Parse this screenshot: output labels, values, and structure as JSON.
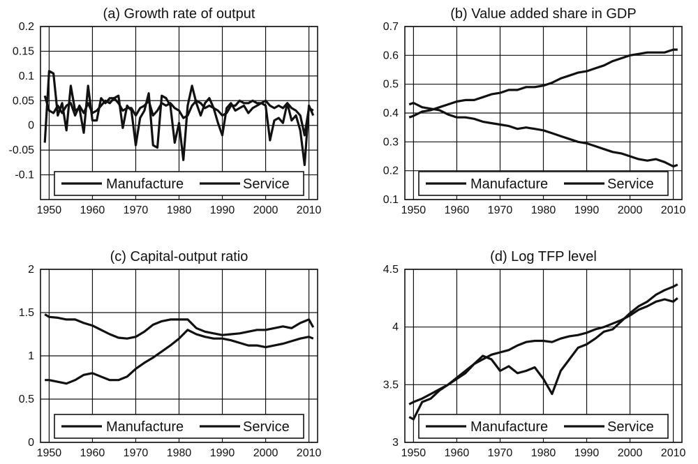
{
  "chart_data": [
    {
      "id": "a",
      "type": "line",
      "title": "(a) Growth rate of output",
      "xlabel": "",
      "ylabel": "",
      "xlim": [
        1948,
        2012
      ],
      "ylim": [
        -0.15,
        0.2
      ],
      "xticks": [
        1950,
        1960,
        1970,
        1980,
        1990,
        2000,
        2010
      ],
      "yticks": [
        -0.1,
        -0.05,
        0,
        0.05,
        0.1,
        0.15,
        0.2
      ],
      "ytick_labels": [
        "-0.1",
        "-0.05",
        "0",
        "0.05",
        "0.1",
        "0.15",
        "0.2"
      ],
      "grid": true,
      "legend_position": "bottom",
      "series": [
        {
          "name": "Manufacture",
          "x": [
            1949,
            1950,
            1951,
            1952,
            1953,
            1954,
            1955,
            1956,
            1957,
            1958,
            1959,
            1960,
            1961,
            1962,
            1963,
            1964,
            1965,
            1966,
            1967,
            1968,
            1969,
            1970,
            1971,
            1972,
            1973,
            1974,
            1975,
            1976,
            1977,
            1978,
            1979,
            1980,
            1981,
            1982,
            1983,
            1984,
            1985,
            1986,
            1987,
            1988,
            1989,
            1990,
            1991,
            1992,
            1993,
            1994,
            1995,
            1996,
            1997,
            1998,
            1999,
            2000,
            2001,
            2002,
            2003,
            2004,
            2005,
            2006,
            2007,
            2008,
            2009,
            2010,
            2011
          ],
          "y": [
            -0.035,
            0.11,
            0.105,
            0.02,
            0.045,
            -0.01,
            0.08,
            0.03,
            0.035,
            -0.015,
            0.08,
            0.01,
            0.01,
            0.055,
            0.045,
            0.055,
            0.055,
            0.06,
            -0.005,
            0.04,
            0.03,
            -0.04,
            0.015,
            0.03,
            0.065,
            -0.04,
            -0.045,
            0.06,
            0.055,
            0.04,
            -0.035,
            0.005,
            -0.07,
            0.04,
            0.08,
            0.045,
            0.02,
            0.045,
            0.055,
            0.035,
            0.005,
            -0.02,
            0.035,
            0.045,
            0.03,
            0.035,
            0.04,
            0.025,
            0.035,
            0.04,
            0.045,
            0.04,
            -0.03,
            0.01,
            0.015,
            0.005,
            0.045,
            0.01,
            0.02,
            -0.01,
            -0.08,
            0.04,
            0.02
          ]
        },
        {
          "name": "Service",
          "x": [
            1949,
            1950,
            1951,
            1952,
            1953,
            1954,
            1955,
            1956,
            1957,
            1958,
            1959,
            1960,
            1961,
            1962,
            1963,
            1964,
            1965,
            1966,
            1967,
            1968,
            1969,
            1970,
            1971,
            1972,
            1973,
            1974,
            1975,
            1976,
            1977,
            1978,
            1979,
            1980,
            1981,
            1982,
            1983,
            1984,
            1985,
            1986,
            1987,
            1988,
            1989,
            1990,
            1991,
            1992,
            1993,
            1994,
            1995,
            1996,
            1997,
            1998,
            1999,
            2000,
            2001,
            2002,
            2003,
            2004,
            2005,
            2006,
            2007,
            2008,
            2009,
            2010,
            2011
          ],
          "y": [
            0.06,
            0.03,
            0.025,
            0.04,
            0.025,
            0.04,
            0.045,
            0.02,
            0.04,
            0.025,
            0.045,
            0.025,
            0.03,
            0.04,
            0.05,
            0.045,
            0.055,
            0.045,
            0.03,
            0.035,
            0.035,
            0.02,
            0.035,
            0.04,
            0.05,
            0.02,
            0.03,
            0.045,
            0.04,
            0.045,
            0.035,
            0.03,
            0.015,
            0.02,
            0.04,
            0.05,
            0.045,
            0.035,
            0.04,
            0.035,
            0.03,
            0.02,
            0.025,
            0.04,
            0.04,
            0.05,
            0.045,
            0.045,
            0.05,
            0.045,
            0.045,
            0.05,
            0.04,
            0.035,
            0.04,
            0.035,
            0.045,
            0.035,
            0.03,
            0.02,
            -0.02,
            0.035,
            0.03
          ]
        }
      ]
    },
    {
      "id": "b",
      "type": "line",
      "title": "(b) Value added share in GDP",
      "xlabel": "",
      "ylabel": "",
      "xlim": [
        1948,
        2012
      ],
      "ylim": [
        0.1,
        0.7
      ],
      "xticks": [
        1950,
        1960,
        1970,
        1980,
        1990,
        2000,
        2010
      ],
      "yticks": [
        0.1,
        0.2,
        0.3,
        0.4,
        0.5,
        0.6,
        0.7
      ],
      "ytick_labels": [
        "0.1",
        "0.2",
        "0.3",
        "0.4",
        "0.5",
        "0.6",
        "0.7"
      ],
      "grid": true,
      "legend_position": "bottom",
      "series": [
        {
          "name": "Manufacture",
          "x": [
            1949,
            1950,
            1952,
            1954,
            1956,
            1958,
            1960,
            1962,
            1964,
            1966,
            1968,
            1970,
            1972,
            1974,
            1976,
            1978,
            1980,
            1982,
            1984,
            1986,
            1988,
            1990,
            1992,
            1994,
            1996,
            1998,
            2000,
            2002,
            2004,
            2006,
            2008,
            2010,
            2011
          ],
          "y": [
            0.43,
            0.435,
            0.42,
            0.415,
            0.41,
            0.395,
            0.385,
            0.385,
            0.38,
            0.37,
            0.365,
            0.36,
            0.355,
            0.345,
            0.35,
            0.345,
            0.34,
            0.33,
            0.32,
            0.31,
            0.3,
            0.295,
            0.285,
            0.275,
            0.265,
            0.26,
            0.25,
            0.24,
            0.235,
            0.24,
            0.23,
            0.215,
            0.22
          ]
        },
        {
          "name": "Service",
          "x": [
            1949,
            1950,
            1952,
            1954,
            1956,
            1958,
            1960,
            1962,
            1964,
            1966,
            1968,
            1970,
            1972,
            1974,
            1976,
            1978,
            1980,
            1982,
            1984,
            1986,
            1988,
            1990,
            1992,
            1994,
            1996,
            1998,
            2000,
            2002,
            2004,
            2006,
            2008,
            2010,
            2011
          ],
          "y": [
            0.385,
            0.39,
            0.405,
            0.41,
            0.42,
            0.43,
            0.44,
            0.445,
            0.445,
            0.455,
            0.465,
            0.47,
            0.48,
            0.48,
            0.49,
            0.49,
            0.495,
            0.505,
            0.52,
            0.53,
            0.54,
            0.545,
            0.555,
            0.565,
            0.58,
            0.59,
            0.6,
            0.605,
            0.61,
            0.61,
            0.61,
            0.62,
            0.62
          ]
        }
      ]
    },
    {
      "id": "c",
      "type": "line",
      "title": "(c) Capital-output ratio",
      "xlabel": "",
      "ylabel": "",
      "xlim": [
        1948,
        2012
      ],
      "ylim": [
        0,
        2
      ],
      "xticks": [
        1950,
        1960,
        1970,
        1980,
        1990,
        2000,
        2010
      ],
      "yticks": [
        0,
        0.5,
        1,
        1.5,
        2
      ],
      "ytick_labels": [
        "0",
        "0.5",
        "1",
        "1.5",
        "2"
      ],
      "grid": true,
      "legend_position": "bottom",
      "series": [
        {
          "name": "Manufacture",
          "x": [
            1949,
            1950,
            1952,
            1954,
            1956,
            1958,
            1960,
            1962,
            1964,
            1966,
            1968,
            1970,
            1972,
            1974,
            1976,
            1978,
            1980,
            1982,
            1984,
            1986,
            1988,
            1990,
            1992,
            1994,
            1996,
            1998,
            2000,
            2002,
            2004,
            2006,
            2008,
            2010,
            2011
          ],
          "y": [
            0.72,
            0.72,
            0.7,
            0.68,
            0.72,
            0.78,
            0.8,
            0.76,
            0.72,
            0.72,
            0.76,
            0.85,
            0.92,
            0.98,
            1.05,
            1.12,
            1.2,
            1.3,
            1.25,
            1.22,
            1.2,
            1.2,
            1.18,
            1.15,
            1.12,
            1.12,
            1.1,
            1.12,
            1.14,
            1.17,
            1.2,
            1.22,
            1.2
          ]
        },
        {
          "name": "Service",
          "x": [
            1949,
            1950,
            1952,
            1954,
            1956,
            1958,
            1960,
            1962,
            1964,
            1966,
            1968,
            1970,
            1972,
            1974,
            1976,
            1978,
            1980,
            1982,
            1984,
            1986,
            1988,
            1990,
            1992,
            1994,
            1996,
            1998,
            2000,
            2002,
            2004,
            2006,
            2008,
            2010,
            2011
          ],
          "y": [
            1.48,
            1.45,
            1.44,
            1.42,
            1.42,
            1.38,
            1.35,
            1.3,
            1.25,
            1.21,
            1.2,
            1.22,
            1.28,
            1.36,
            1.4,
            1.42,
            1.42,
            1.42,
            1.32,
            1.28,
            1.26,
            1.24,
            1.25,
            1.26,
            1.28,
            1.3,
            1.3,
            1.32,
            1.34,
            1.32,
            1.38,
            1.42,
            1.33
          ]
        }
      ]
    },
    {
      "id": "d",
      "type": "line",
      "title": "(d) Log TFP level",
      "xlabel": "",
      "ylabel": "",
      "xlim": [
        1948,
        2012
      ],
      "ylim": [
        3,
        4.5
      ],
      "xticks": [
        1950,
        1960,
        1970,
        1980,
        1990,
        2000,
        2010
      ],
      "yticks": [
        3,
        3.5,
        4,
        4.5
      ],
      "ytick_labels": [
        "3",
        "3.5",
        "4",
        "4.5"
      ],
      "grid": true,
      "legend_position": "bottom",
      "series": [
        {
          "name": "Manufacture",
          "x": [
            1949,
            1950,
            1952,
            1954,
            1956,
            1958,
            1960,
            1962,
            1964,
            1966,
            1968,
            1970,
            1972,
            1974,
            1976,
            1978,
            1980,
            1982,
            1984,
            1986,
            1988,
            1990,
            1992,
            1994,
            1996,
            1998,
            2000,
            2002,
            2004,
            2006,
            2008,
            2010,
            2011
          ],
          "y": [
            3.22,
            3.2,
            3.35,
            3.38,
            3.45,
            3.5,
            3.55,
            3.6,
            3.68,
            3.75,
            3.72,
            3.62,
            3.66,
            3.6,
            3.62,
            3.65,
            3.55,
            3.42,
            3.62,
            3.72,
            3.82,
            3.85,
            3.9,
            3.96,
            3.98,
            4.05,
            4.12,
            4.18,
            4.22,
            4.28,
            4.32,
            4.35,
            4.37
          ]
        },
        {
          "name": "Service",
          "x": [
            1949,
            1950,
            1952,
            1954,
            1956,
            1958,
            1960,
            1962,
            1964,
            1966,
            1968,
            1970,
            1972,
            1974,
            1976,
            1978,
            1980,
            1982,
            1984,
            1986,
            1988,
            1990,
            1992,
            1994,
            1996,
            1998,
            2000,
            2002,
            2004,
            2006,
            2008,
            2010,
            2011
          ],
          "y": [
            3.33,
            3.35,
            3.38,
            3.42,
            3.46,
            3.5,
            3.56,
            3.62,
            3.68,
            3.72,
            3.76,
            3.78,
            3.8,
            3.84,
            3.87,
            3.88,
            3.88,
            3.87,
            3.9,
            3.92,
            3.93,
            3.95,
            3.98,
            4.0,
            4.03,
            4.06,
            4.1,
            4.15,
            4.18,
            4.22,
            4.24,
            4.22,
            4.25
          ]
        }
      ]
    }
  ]
}
